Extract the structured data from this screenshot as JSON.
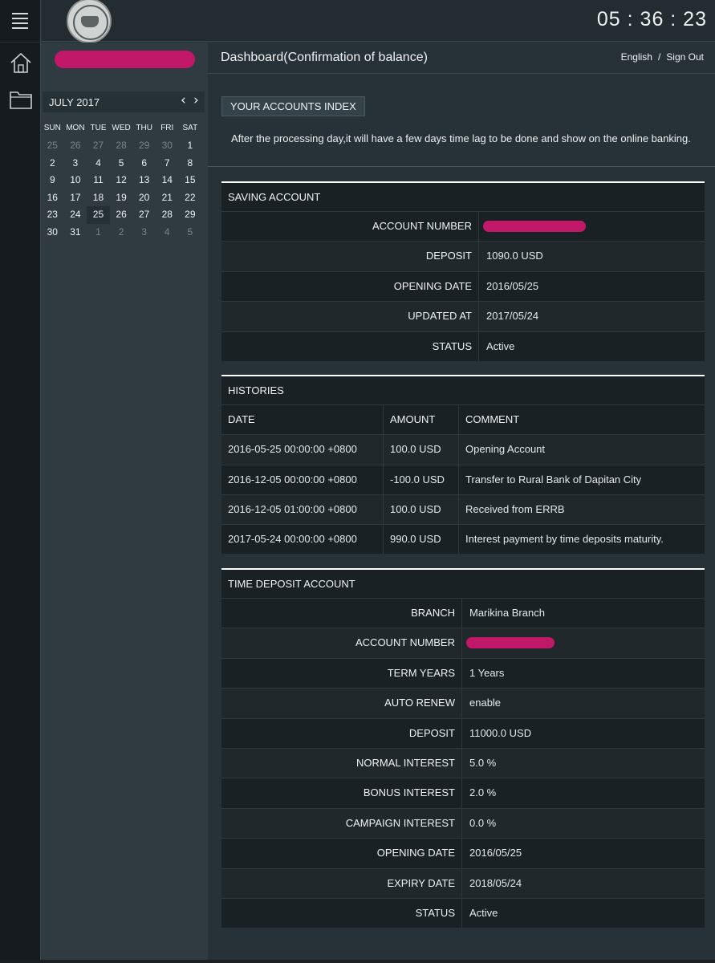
{
  "topbar": {
    "clock": "05 : 36 : 23"
  },
  "icons": {
    "menu": "menu-icon",
    "home": "home-icon",
    "folder": "folder-icon",
    "logo": "seal-logo"
  },
  "calendar": {
    "title": "JULY 2017",
    "prev": "‹",
    "next": "›",
    "days_of_week": [
      "SUN",
      "MON",
      "TUE",
      "WED",
      "THU",
      "FRI",
      "SAT"
    ],
    "weeks": [
      [
        {
          "d": "25",
          "dim": true
        },
        {
          "d": "26",
          "dim": true
        },
        {
          "d": "27",
          "dim": true
        },
        {
          "d": "28",
          "dim": true
        },
        {
          "d": "29",
          "dim": true
        },
        {
          "d": "30",
          "dim": true
        },
        {
          "d": "1",
          "dim": false
        }
      ],
      [
        {
          "d": "2",
          "dim": false
        },
        {
          "d": "3",
          "dim": false
        },
        {
          "d": "4",
          "dim": false
        },
        {
          "d": "5",
          "dim": false
        },
        {
          "d": "6",
          "dim": false
        },
        {
          "d": "7",
          "dim": false
        },
        {
          "d": "8",
          "dim": false
        }
      ],
      [
        {
          "d": "9",
          "dim": false
        },
        {
          "d": "10",
          "dim": false
        },
        {
          "d": "11",
          "dim": false
        },
        {
          "d": "12",
          "dim": false
        },
        {
          "d": "13",
          "dim": false
        },
        {
          "d": "14",
          "dim": false
        },
        {
          "d": "15",
          "dim": false
        }
      ],
      [
        {
          "d": "16",
          "dim": false
        },
        {
          "d": "17",
          "dim": false
        },
        {
          "d": "18",
          "dim": false
        },
        {
          "d": "19",
          "dim": false
        },
        {
          "d": "20",
          "dim": false
        },
        {
          "d": "21",
          "dim": false
        },
        {
          "d": "22",
          "dim": false
        }
      ],
      [
        {
          "d": "23",
          "dim": false
        },
        {
          "d": "24",
          "dim": false
        },
        {
          "d": "25",
          "dim": false,
          "today": true
        },
        {
          "d": "26",
          "dim": false
        },
        {
          "d": "27",
          "dim": false
        },
        {
          "d": "28",
          "dim": false
        },
        {
          "d": "29",
          "dim": false
        }
      ],
      [
        {
          "d": "30",
          "dim": false
        },
        {
          "d": "31",
          "dim": false
        },
        {
          "d": "1",
          "dim": true
        },
        {
          "d": "2",
          "dim": true
        },
        {
          "d": "3",
          "dim": true
        },
        {
          "d": "4",
          "dim": true
        },
        {
          "d": "5",
          "dim": true
        }
      ]
    ]
  },
  "header": {
    "title": "Dashboard(Confirmation of balance)",
    "language_link": "English",
    "separator": "/",
    "signout_link": "Sign Out"
  },
  "accounts_index": {
    "tab_label": "YOUR ACCOUNTS INDEX",
    "notice": "After the processing day,it will have a few days time lag to be done and show on the online banking."
  },
  "saving_account": {
    "title": "SAVING ACCOUNT",
    "rows": [
      {
        "label": "ACCOUNT NUMBER",
        "value": "",
        "redacted": true
      },
      {
        "label": "DEPOSIT",
        "value": "1090.0 USD"
      },
      {
        "label": "OPENING DATE",
        "value": "2016/05/25"
      },
      {
        "label": "UPDATED AT",
        "value": "2017/05/24"
      },
      {
        "label": "STATUS",
        "value": "Active"
      }
    ]
  },
  "histories": {
    "title": "HISTORIES",
    "columns": [
      "DATE",
      "AMOUNT",
      "COMMENT"
    ],
    "rows": [
      [
        "2016-05-25 00:00:00 +0800",
        "100.0 USD",
        "Opening Account"
      ],
      [
        "2016-12-05 00:00:00 +0800",
        "-100.0 USD",
        "Transfer to Rural Bank of Dapitan City"
      ],
      [
        "2016-12-05 01:00:00 +0800",
        "100.0 USD",
        "Received from ERRB"
      ],
      [
        "2017-05-24 00:00:00 +0800",
        "990.0 USD",
        "Interest payment by time deposits maturity."
      ]
    ]
  },
  "time_deposit": {
    "title": "TIME DEPOSIT ACCOUNT",
    "rows": [
      {
        "label": "BRANCH",
        "value": "Marikina Branch"
      },
      {
        "label": "ACCOUNT NUMBER",
        "value": "",
        "redacted": true
      },
      {
        "label": "TERM YEARS",
        "value": "1 Years"
      },
      {
        "label": "AUTO RENEW",
        "value": "enable"
      },
      {
        "label": "DEPOSIT",
        "value": "11000.0 USD"
      },
      {
        "label": "NORMAL INTEREST",
        "value": "5.0 %"
      },
      {
        "label": "BONUS INTEREST",
        "value": "2.0 %"
      },
      {
        "label": "CAMPAIGN INTEREST",
        "value": "0.0 %"
      },
      {
        "label": "OPENING DATE",
        "value": "2016/05/25"
      },
      {
        "label": "EXPIRY DATE",
        "value": "2018/05/24"
      },
      {
        "label": "STATUS",
        "value": "Active"
      }
    ]
  },
  "colors": {
    "redaction": "#c1186a",
    "background": "#263237",
    "panel": "#1a2124"
  }
}
